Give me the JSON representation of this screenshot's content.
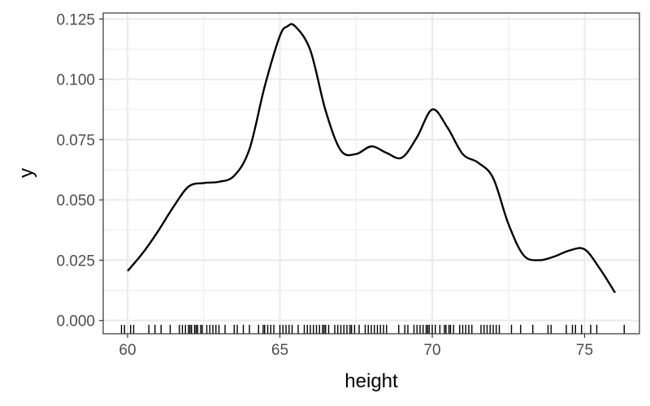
{
  "chart_data": {
    "type": "line",
    "title": "",
    "xlabel": "height",
    "ylabel": "y",
    "xlim": [
      59.2,
      76.8
    ],
    "ylim": [
      -0.0055,
      0.1275
    ],
    "grid": true,
    "colors": {
      "line": "#000000",
      "grid": "#ebebeb",
      "border": "#333333",
      "rug": "#000000"
    },
    "x_ticks": [
      60,
      65,
      70,
      75
    ],
    "x_tick_labels": [
      "60",
      "65",
      "70",
      "75"
    ],
    "y_ticks": [
      0,
      0.025,
      0.05,
      0.075,
      0.1,
      0.125
    ],
    "y_tick_labels": [
      "0.000",
      "0.025",
      "0.050",
      "0.075",
      "0.100",
      "0.125"
    ],
    "series": [
      {
        "x": [
          60.0,
          60.5,
          61.0,
          61.5,
          62.0,
          62.5,
          63.0,
          63.5,
          64.0,
          64.5,
          65.0,
          65.25,
          65.5,
          66.0,
          66.5,
          67.0,
          67.5,
          68.0,
          68.5,
          69.0,
          69.5,
          70.0,
          70.5,
          71.0,
          71.5,
          72.0,
          72.5,
          73.0,
          73.5,
          74.0,
          74.5,
          75.0,
          75.5,
          76.0
        ],
        "y": [
          0.0205,
          0.028,
          0.037,
          0.047,
          0.0555,
          0.057,
          0.0575,
          0.06,
          0.071,
          0.097,
          0.118,
          0.122,
          0.122,
          0.112,
          0.087,
          0.0705,
          0.069,
          0.0722,
          0.0695,
          0.0675,
          0.076,
          0.0875,
          0.08,
          0.069,
          0.0655,
          0.059,
          0.04,
          0.027,
          0.025,
          0.0265,
          0.029,
          0.0295,
          0.0215,
          0.0115
        ]
      }
    ],
    "rug": [
      59.8,
      59.9,
      60.1,
      60.2,
      60.7,
      60.9,
      61.1,
      61.4,
      61.7,
      61.8,
      61.9,
      62.0,
      62.05,
      62.1,
      62.2,
      62.25,
      62.3,
      62.4,
      62.45,
      62.6,
      62.7,
      62.8,
      62.9,
      63.0,
      63.2,
      63.5,
      63.6,
      63.8,
      64.0,
      64.3,
      64.45,
      64.5,
      64.6,
      64.7,
      64.8,
      65.0,
      65.1,
      65.2,
      65.3,
      65.4,
      65.6,
      65.8,
      65.9,
      66.0,
      66.1,
      66.2,
      66.3,
      66.4,
      66.45,
      66.5,
      66.6,
      66.8,
      66.9,
      67.0,
      67.1,
      67.2,
      67.3,
      67.35,
      67.45,
      67.6,
      67.8,
      67.9,
      68.0,
      68.1,
      68.2,
      68.3,
      68.4,
      68.5,
      68.9,
      69.1,
      69.2,
      69.4,
      69.5,
      69.6,
      69.7,
      69.8,
      69.85,
      69.9,
      70.0,
      70.1,
      70.25,
      70.4,
      70.45,
      70.55,
      70.6,
      70.7,
      70.9,
      71.0,
      71.1,
      71.2,
      71.3,
      71.6,
      71.7,
      71.8,
      71.9,
      72.0,
      72.1,
      72.2,
      72.6,
      72.9,
      73.3,
      73.8,
      73.9,
      74.4,
      74.6,
      74.7,
      74.9,
      75.2,
      75.4,
      76.3
    ]
  }
}
